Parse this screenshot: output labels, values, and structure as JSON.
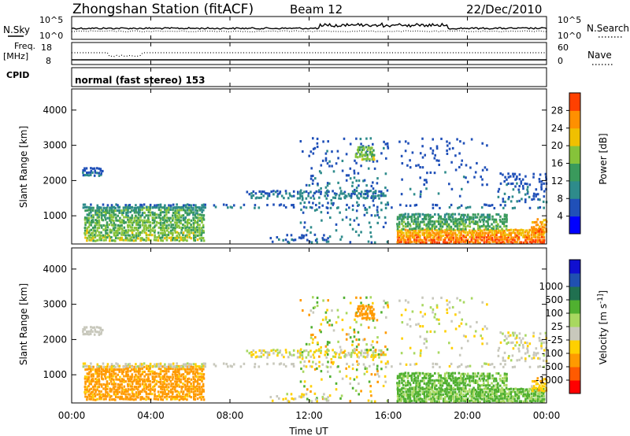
{
  "header": {
    "station_title": "Zhongshan Station (fitACF)",
    "beam": "Beam 12",
    "date": "22/Dec/2010"
  },
  "side_labels": {
    "nsky": "N.Sky",
    "nsearch": "N.Search",
    "freq": "Freq.",
    "freq_unit": "[MHz]",
    "nave": "Nave",
    "cpid": "CPID",
    "cpid_value": "normal (fast stereo) 153"
  },
  "noise_axis": {
    "top": "10^5",
    "bottom": "10^0",
    "right_top": "10^5",
    "right_bottom": "10^0"
  },
  "freq_axis": {
    "top": "18",
    "bottom": "8",
    "right_top": "60",
    "right_bottom": "0"
  },
  "colors": {
    "power_scale": [
      "#0000ff",
      "#2050b8",
      "#2e8b8b",
      "#3a9a5c",
      "#86c33a",
      "#f0c000",
      "#ff9000",
      "#ff4000",
      "#ff0000"
    ],
    "velocity_scale": [
      "#ff0000",
      "#ff5a00",
      "#ff9a00",
      "#ffd000",
      "#c8c8bc",
      "#a8d860",
      "#50b030",
      "#207050",
      "#2050b0",
      "#1010d0"
    ]
  },
  "chart_data": [
    {
      "type": "heatmap",
      "name": "power",
      "ylabel": "Slant Range [km]",
      "xlabel": "",
      "ylim": [
        200,
        4600
      ],
      "xlim": [
        0,
        24
      ],
      "yticks": [
        "1000",
        "2000",
        "3000",
        "4000"
      ],
      "colorbar_label": "Power [dB]",
      "colorbar_ticks": [
        "4",
        "8",
        "12",
        "16",
        "20",
        "24",
        "28"
      ],
      "colorbar_range": [
        0,
        32
      ]
    },
    {
      "type": "heatmap",
      "name": "velocity",
      "ylabel": "Slant Range [km]",
      "xlabel": "Time UT",
      "ylim": [
        200,
        4600
      ],
      "xlim": [
        0,
        24
      ],
      "yticks": [
        "1000",
        "2000",
        "3000",
        "4000"
      ],
      "xticks": [
        "00:00",
        "04:00",
        "08:00",
        "12:00",
        "16:00",
        "20:00",
        "00:00"
      ],
      "colorbar_label": "Velocity [m s^-1]",
      "colorbar_ticks": [
        "-1000",
        "-500",
        "-100",
        "-25",
        "25",
        "100",
        "500",
        "1000"
      ]
    }
  ]
}
